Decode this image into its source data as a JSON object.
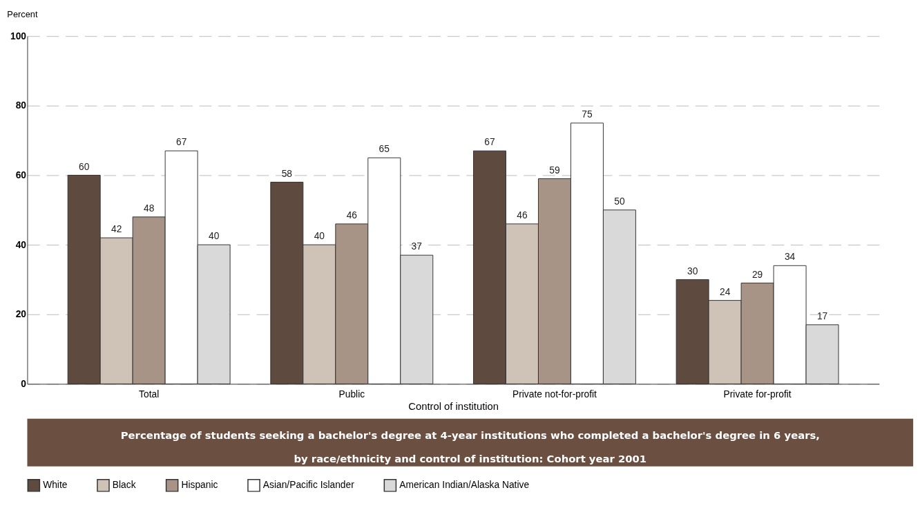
{
  "chart_data": {
    "type": "bar",
    "title": "Percentage of students seeking a bachelor's degree at 4-year institutions who completed a bachelor's degree in 6 years, by race/ethnicity and control of institution: Cohort year 2001",
    "xlabel": "Control of institution",
    "ylabel": "Percent",
    "categories": [
      "Total",
      "Public",
      "Private not-for-profit",
      "Private for-profit"
    ],
    "series": [
      {
        "name": "White",
        "color": "#5e4a3e",
        "values": [
          60,
          58,
          67,
          30
        ]
      },
      {
        "name": "Black",
        "color": "#cfc3b8",
        "values": [
          42,
          40,
          46,
          24
        ]
      },
      {
        "name": "Hispanic",
        "color": "#a89486",
        "values": [
          48,
          46,
          59,
          29
        ]
      },
      {
        "name": "Asian/Pacific Islander",
        "color": "#ffffff",
        "values": [
          67,
          65,
          75,
          34
        ]
      },
      {
        "name": "American Indian/Alaska Native",
        "color": "#d9d9d9",
        "values": [
          40,
          37,
          50,
          17
        ]
      }
    ],
    "ylim": [
      0,
      100
    ],
    "yticks": [
      0,
      20,
      40,
      60,
      80,
      100
    ],
    "grid": "y",
    "legend": "bottom",
    "data_labels": true
  }
}
